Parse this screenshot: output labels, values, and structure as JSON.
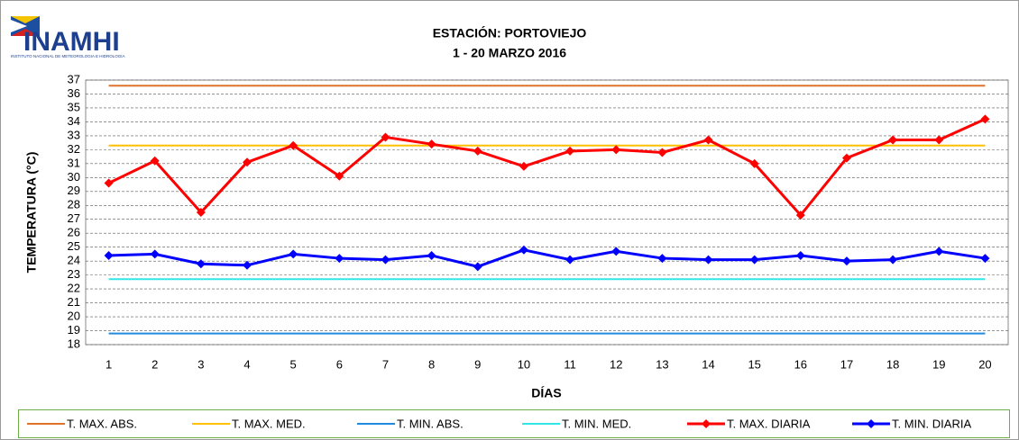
{
  "chart_data": {
    "type": "line",
    "logo_text": "INAMHI",
    "logo_subtitle": "INSTITUTO NACIONAL DE METEOROLOGIA E HIDROLOGIA",
    "title": "ESTACIÓN: PORTOVIEJO",
    "subtitle": "1 - 20  MARZO 2016",
    "x_label": "DÍAS",
    "y_label": "TEMPERATURA (°C)",
    "categories": [
      "1",
      "2",
      "3",
      "4",
      "5",
      "6",
      "7",
      "8",
      "9",
      "10",
      "11",
      "12",
      "13",
      "14",
      "15",
      "16",
      "17",
      "18",
      "19",
      "20"
    ],
    "ylim": [
      18,
      37
    ],
    "yticks": [
      18,
      19,
      20,
      21,
      22,
      23,
      24,
      25,
      26,
      27,
      28,
      29,
      30,
      31,
      32,
      33,
      34,
      35,
      36,
      37
    ],
    "grid": true,
    "legend": "bottom",
    "series": [
      {
        "name": "T. MAX. ABS.",
        "color": "#e2722a",
        "marker": false,
        "values": [
          36.6,
          36.6,
          36.6,
          36.6,
          36.6,
          36.6,
          36.6,
          36.6,
          36.6,
          36.6,
          36.6,
          36.6,
          36.6,
          36.6,
          36.6,
          36.6,
          36.6,
          36.6,
          36.6,
          36.6
        ]
      },
      {
        "name": "T. MAX. MED.",
        "color": "#ffc000",
        "marker": false,
        "values": [
          32.3,
          32.3,
          32.3,
          32.3,
          32.3,
          32.3,
          32.3,
          32.3,
          32.3,
          32.3,
          32.3,
          32.3,
          32.3,
          32.3,
          32.3,
          32.3,
          32.3,
          32.3,
          32.3,
          32.3
        ]
      },
      {
        "name": "T. MIN. ABS.",
        "color": "#1f8be0",
        "marker": false,
        "values": [
          18.8,
          18.8,
          18.8,
          18.8,
          18.8,
          18.8,
          18.8,
          18.8,
          18.8,
          18.8,
          18.8,
          18.8,
          18.8,
          18.8,
          18.8,
          18.8,
          18.8,
          18.8,
          18.8,
          18.8
        ]
      },
      {
        "name": "T. MIN. MED.",
        "color": "#33e6e6",
        "marker": false,
        "values": [
          22.7,
          22.7,
          22.7,
          22.7,
          22.7,
          22.7,
          22.7,
          22.7,
          22.7,
          22.7,
          22.7,
          22.7,
          22.7,
          22.7,
          22.7,
          22.7,
          22.7,
          22.7,
          22.7,
          22.7
        ]
      },
      {
        "name": "T. MAX. DIARIA",
        "color": "#ff0000",
        "marker": true,
        "values": [
          29.6,
          31.2,
          27.5,
          31.1,
          32.3,
          30.1,
          32.9,
          32.4,
          31.9,
          30.8,
          31.9,
          32.0,
          31.8,
          32.7,
          31.0,
          27.3,
          31.4,
          32.7,
          32.7,
          34.2
        ]
      },
      {
        "name": "T. MIN. DIARIA",
        "color": "#0000ff",
        "marker": true,
        "values": [
          24.4,
          24.5,
          23.8,
          23.7,
          24.5,
          24.2,
          24.1,
          24.4,
          23.6,
          24.8,
          24.1,
          24.7,
          24.2,
          24.1,
          24.1,
          24.4,
          24.0,
          24.1,
          24.7,
          24.2
        ]
      }
    ]
  }
}
